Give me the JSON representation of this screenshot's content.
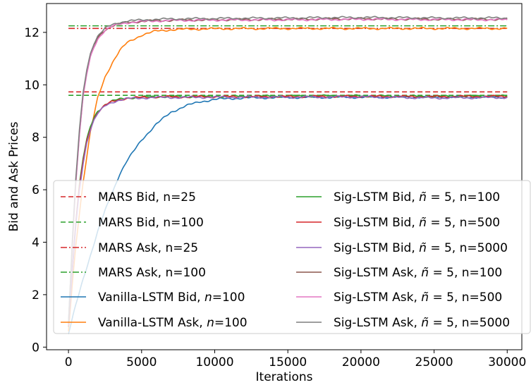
{
  "chart_data": {
    "type": "line",
    "title": "",
    "xlabel": "Iterations",
    "ylabel": "Bid and Ask Prices",
    "xlim": [
      -1500,
      31000
    ],
    "ylim": [
      -0.1,
      13.1
    ],
    "xticks": [
      0,
      5000,
      10000,
      15000,
      20000,
      25000,
      30000
    ],
    "yticks": [
      0,
      2,
      4,
      6,
      8,
      10,
      12
    ],
    "grid": false,
    "legend_placement": "lower-right",
    "legend_columns": 2,
    "series": [
      {
        "name": "MARS Bid, n=25",
        "style": "dashed",
        "color": "#d62728",
        "x": [
          0,
          30000
        ],
        "values": [
          9.73,
          9.73
        ]
      },
      {
        "name": "MARS Bid, n=100",
        "style": "dashed",
        "color": "#2ca02c",
        "x": [
          0,
          30000
        ],
        "values": [
          9.6,
          9.6
        ]
      },
      {
        "name": "MARS Ask, n=25",
        "style": "dashdot",
        "color": "#d62728",
        "x": [
          0,
          30000
        ],
        "values": [
          12.15,
          12.15
        ]
      },
      {
        "name": "MARS Ask, n=100",
        "style": "dashdot",
        "color": "#2ca02c",
        "x": [
          0,
          30000
        ],
        "values": [
          12.25,
          12.25
        ]
      },
      {
        "name": "Vanilla-LSTM Bid, n=100",
        "style": "solid",
        "color": "#1f77b4",
        "x": [
          0,
          500,
          1000,
          1500,
          2000,
          2500,
          3000,
          3500,
          4000,
          5000,
          6000,
          7000,
          8000,
          9000,
          10000,
          12000,
          15000,
          20000,
          25000,
          30000
        ],
        "values": [
          0.5,
          1.6,
          2.6,
          3.5,
          4.4,
          5.2,
          5.9,
          6.6,
          7.1,
          7.9,
          8.5,
          8.95,
          9.2,
          9.35,
          9.45,
          9.5,
          9.52,
          9.53,
          9.53,
          9.53
        ]
      },
      {
        "name": "Vanilla-LSTM Ask, n=100",
        "style": "solid",
        "color": "#ff7f0e",
        "x": [
          0,
          250,
          500,
          750,
          1000,
          1500,
          2000,
          2500,
          3000,
          3500,
          4000,
          5000,
          6000,
          7000,
          8000,
          10000,
          15000,
          20000,
          25000,
          30000
        ],
        "values": [
          0.6,
          2.3,
          3.9,
          5.1,
          6.3,
          8.2,
          9.5,
          10.3,
          10.85,
          11.3,
          11.6,
          11.9,
          12.05,
          12.1,
          12.12,
          12.14,
          12.15,
          12.15,
          12.15,
          12.15
        ]
      },
      {
        "name": "Sig-LSTM Bid, ñ = 5, n=100",
        "style": "solid",
        "color": "#2ca02c",
        "x": [
          0,
          250,
          500,
          750,
          1000,
          1250,
          1500,
          1750,
          2000,
          2500,
          3000,
          3500,
          4000,
          5000,
          6000,
          8000,
          10000,
          15000,
          20000,
          25000,
          30000
        ],
        "values": [
          0.8,
          2.9,
          4.8,
          6.2,
          7.2,
          7.9,
          8.4,
          8.75,
          9.0,
          9.25,
          9.38,
          9.45,
          9.5,
          9.53,
          9.55,
          9.55,
          9.56,
          9.57,
          9.58,
          9.56,
          9.57
        ]
      },
      {
        "name": "Sig-LSTM Bid, ñ = 5, n=500",
        "style": "solid",
        "color": "#d62728",
        "x": [
          0,
          250,
          500,
          750,
          1000,
          1250,
          1500,
          1750,
          2000,
          2500,
          3000,
          3500,
          4000,
          5000,
          6000,
          8000,
          10000,
          15000,
          20000,
          25000,
          30000
        ],
        "values": [
          0.8,
          2.8,
          4.7,
          6.1,
          7.1,
          7.85,
          8.35,
          8.7,
          8.95,
          9.22,
          9.36,
          9.44,
          9.49,
          9.52,
          9.54,
          9.54,
          9.55,
          9.55,
          9.56,
          9.55,
          9.56
        ]
      },
      {
        "name": "Sig-LSTM Bid, ñ = 5, n=5000",
        "style": "solid",
        "color": "#9467bd",
        "x": [
          0,
          250,
          500,
          750,
          1000,
          1250,
          1500,
          1750,
          2000,
          2500,
          3000,
          3500,
          4000,
          5000,
          6000,
          8000,
          10000,
          15000,
          20000,
          25000,
          30000
        ],
        "values": [
          0.8,
          2.8,
          4.6,
          6.0,
          7.0,
          7.8,
          8.3,
          8.65,
          8.9,
          9.2,
          9.34,
          9.42,
          9.47,
          9.5,
          9.52,
          9.52,
          9.53,
          9.53,
          9.54,
          9.5,
          9.52
        ]
      },
      {
        "name": "Sig-LSTM Ask, ñ = 5, n=100",
        "style": "solid",
        "color": "#8c564b",
        "x": [
          0,
          250,
          500,
          750,
          1000,
          1250,
          1500,
          1750,
          2000,
          2500,
          3000,
          3500,
          4000,
          5000,
          6000,
          8000,
          10000,
          15000,
          20000,
          25000,
          30000
        ],
        "values": [
          0.9,
          3.8,
          6.3,
          8.2,
          9.6,
          10.5,
          11.1,
          11.5,
          11.8,
          12.1,
          12.25,
          12.33,
          12.38,
          12.42,
          12.45,
          12.47,
          12.48,
          12.5,
          12.52,
          12.5,
          12.5
        ]
      },
      {
        "name": "Sig-LSTM Ask, ñ = 5, n=500",
        "style": "solid",
        "color": "#e377c2",
        "x": [
          0,
          250,
          500,
          750,
          1000,
          1250,
          1500,
          1750,
          2000,
          2500,
          3000,
          3500,
          4000,
          5000,
          6000,
          8000,
          10000,
          15000,
          20000,
          25000,
          30000
        ],
        "values": [
          0.9,
          3.7,
          6.2,
          8.1,
          9.5,
          10.4,
          11.05,
          11.45,
          11.75,
          12.08,
          12.23,
          12.31,
          12.37,
          12.41,
          12.44,
          12.46,
          12.47,
          12.48,
          12.5,
          12.49,
          12.48
        ]
      },
      {
        "name": "Sig-LSTM Ask, ñ = 5, n=5000",
        "style": "solid",
        "color": "#7f7f7f",
        "x": [
          0,
          250,
          500,
          750,
          1000,
          1250,
          1500,
          1750,
          2000,
          2500,
          3000,
          3500,
          4000,
          5000,
          6000,
          8000,
          10000,
          15000,
          20000,
          25000,
          30000
        ],
        "values": [
          0.9,
          3.9,
          6.4,
          8.3,
          9.7,
          10.6,
          11.2,
          11.6,
          11.85,
          12.15,
          12.3,
          12.38,
          12.43,
          12.47,
          12.5,
          12.52,
          12.53,
          12.55,
          12.57,
          12.55,
          12.55
        ]
      }
    ]
  },
  "legend": {
    "left": [
      {
        "color": "#d62728",
        "style": "dashed",
        "parts": [
          {
            "t": "MARS Bid, n=25"
          }
        ]
      },
      {
        "color": "#2ca02c",
        "style": "dashed",
        "parts": [
          {
            "t": "MARS Bid, n=100"
          }
        ]
      },
      {
        "color": "#d62728",
        "style": "dashdot",
        "parts": [
          {
            "t": "MARS Ask, n=25"
          }
        ]
      },
      {
        "color": "#2ca02c",
        "style": "dashdot",
        "parts": [
          {
            "t": "MARS Ask, n=100"
          }
        ]
      },
      {
        "color": "#1f77b4",
        "style": "solid",
        "parts": [
          {
            "t": "Vanilla-LSTM Bid, "
          },
          {
            "t": "n",
            "i": true
          },
          {
            "t": "=100"
          }
        ]
      },
      {
        "color": "#ff7f0e",
        "style": "solid",
        "parts": [
          {
            "t": "Vanilla-LSTM Ask, "
          },
          {
            "t": "n",
            "i": true
          },
          {
            "t": "=100"
          }
        ]
      }
    ],
    "right": [
      {
        "color": "#2ca02c",
        "style": "solid",
        "parts": [
          {
            "t": "Sig-LSTM Bid, "
          },
          {
            "t": "ñ",
            "i": true
          },
          {
            "t": " = 5, n=100"
          }
        ]
      },
      {
        "color": "#d62728",
        "style": "solid",
        "parts": [
          {
            "t": "Sig-LSTM Bid, "
          },
          {
            "t": "ñ",
            "i": true
          },
          {
            "t": " = 5, n=500"
          }
        ]
      },
      {
        "color": "#9467bd",
        "style": "solid",
        "parts": [
          {
            "t": "Sig-LSTM Bid, "
          },
          {
            "t": "ñ",
            "i": true
          },
          {
            "t": " = 5, n=5000"
          }
        ]
      },
      {
        "color": "#8c564b",
        "style": "solid",
        "parts": [
          {
            "t": "Sig-LSTM Ask, "
          },
          {
            "t": "ñ",
            "i": true
          },
          {
            "t": " = 5, n=100"
          }
        ]
      },
      {
        "color": "#e377c2",
        "style": "solid",
        "parts": [
          {
            "t": "Sig-LSTM Ask, "
          },
          {
            "t": "ñ",
            "i": true
          },
          {
            "t": " = 5, n=500"
          }
        ]
      },
      {
        "color": "#7f7f7f",
        "style": "solid",
        "parts": [
          {
            "t": "Sig-LSTM Ask, "
          },
          {
            "t": "ñ",
            "i": true
          },
          {
            "t": " = 5, n=5000"
          }
        ]
      }
    ]
  }
}
